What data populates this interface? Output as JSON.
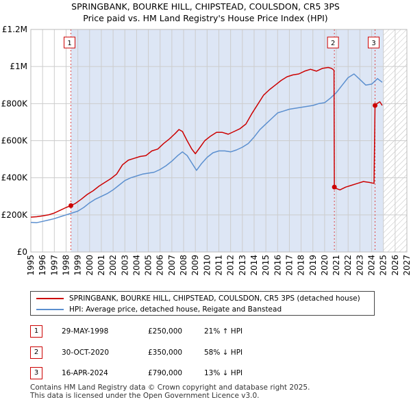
{
  "header": {
    "title_line1": "SPRINGBANK, BOURKE HILL, CHIPSTEAD, COULSDON, CR5 3PS",
    "title_line2": "Price paid vs. HM Land Registry's House Price Index (HPI)"
  },
  "colors": {
    "property": "#cc0000",
    "hpi": "#5b8fcf",
    "shade": "#dde6f5",
    "grid": "#cccccc",
    "marker_line": "#dd4444"
  },
  "chart_data": {
    "type": "line",
    "xlim": [
      1995,
      2027
    ],
    "ylim": [
      0,
      1200000
    ],
    "y_ticks": [
      {
        "value": 0,
        "label": "£0"
      },
      {
        "value": 200000,
        "label": "£200K"
      },
      {
        "value": 400000,
        "label": "£400K"
      },
      {
        "value": 600000,
        "label": "£600K"
      },
      {
        "value": 800000,
        "label": "£800K"
      },
      {
        "value": 1000000,
        "label": "£1M"
      },
      {
        "value": 1200000,
        "label": "£1.2M"
      }
    ],
    "x_ticks": [
      "1995",
      "1996",
      "1997",
      "1998",
      "1999",
      "2000",
      "2001",
      "2002",
      "2003",
      "2004",
      "2005",
      "2006",
      "2007",
      "2008",
      "2009",
      "2010",
      "2011",
      "2012",
      "2013",
      "2014",
      "2015",
      "2016",
      "2017",
      "2018",
      "2019",
      "2020",
      "2021",
      "2022",
      "2023",
      "2024",
      "2025",
      "2026",
      "2027"
    ],
    "shaded_region": [
      1998.41,
      2025.0
    ],
    "hatched_from": 2025.0,
    "series": [
      {
        "name": "SPRINGBANK, BOURKE HILL, CHIPSTEAD, COULSDON, CR5 3PS (detached house)",
        "color": "#cc0000",
        "x": [
          1995.0,
          1995.5,
          1996.0,
          1996.5,
          1997.0,
          1997.5,
          1998.0,
          1998.41,
          1998.8,
          1999.3,
          1999.8,
          2000.3,
          2000.8,
          2001.3,
          2001.8,
          2002.3,
          2002.8,
          2003.3,
          2003.8,
          2004.3,
          2004.8,
          2005.3,
          2005.8,
          2006.3,
          2006.8,
          2007.3,
          2007.6,
          2007.9,
          2008.3,
          2008.7,
          2009.0,
          2009.4,
          2009.8,
          2010.3,
          2010.8,
          2011.3,
          2011.8,
          2012.3,
          2012.8,
          2013.3,
          2013.8,
          2014.3,
          2014.8,
          2015.3,
          2015.8,
          2016.3,
          2016.8,
          2017.3,
          2017.8,
          2018.3,
          2018.8,
          2019.3,
          2019.8,
          2020.3,
          2020.6,
          2020.8,
          2020.83,
          2020.9,
          2021.3,
          2021.8,
          2022.3,
          2022.8,
          2023.3,
          2023.8,
          2024.2,
          2024.29,
          2024.45,
          2024.7,
          2024.9
        ],
        "values": [
          188000,
          190000,
          195000,
          200000,
          210000,
          225000,
          240000,
          250000,
          262000,
          285000,
          310000,
          330000,
          355000,
          375000,
          395000,
          420000,
          470000,
          495000,
          505000,
          515000,
          520000,
          545000,
          555000,
          585000,
          610000,
          640000,
          660000,
          650000,
          600000,
          555000,
          530000,
          565000,
          600000,
          625000,
          645000,
          645000,
          635000,
          650000,
          665000,
          690000,
          745000,
          795000,
          845000,
          875000,
          900000,
          925000,
          945000,
          955000,
          960000,
          975000,
          985000,
          975000,
          990000,
          995000,
          990000,
          980000,
          350000,
          345000,
          335000,
          350000,
          360000,
          370000,
          380000,
          375000,
          370000,
          790000,
          800000,
          810000,
          790000
        ]
      },
      {
        "name": "HPI: Average price, detached house, Reigate and Banstead",
        "color": "#5b8fcf",
        "x": [
          1995.0,
          1995.5,
          1996.0,
          1996.5,
          1997.0,
          1997.5,
          1998.0,
          1998.5,
          1999.0,
          1999.5,
          2000.0,
          2000.5,
          2001.0,
          2001.5,
          2002.0,
          2002.5,
          2003.0,
          2003.5,
          2004.0,
          2004.5,
          2005.0,
          2005.5,
          2006.0,
          2006.5,
          2007.0,
          2007.5,
          2007.9,
          2008.3,
          2008.7,
          2009.1,
          2009.5,
          2010.0,
          2010.5,
          2011.0,
          2011.5,
          2012.0,
          2012.5,
          2013.0,
          2013.5,
          2014.0,
          2014.5,
          2015.0,
          2015.5,
          2016.0,
          2016.5,
          2017.0,
          2017.5,
          2018.0,
          2018.5,
          2019.0,
          2019.5,
          2020.0,
          2020.5,
          2021.0,
          2021.5,
          2022.0,
          2022.5,
          2023.0,
          2023.5,
          2024.0,
          2024.5,
          2024.9
        ],
        "values": [
          160000,
          158000,
          165000,
          172000,
          180000,
          190000,
          200000,
          210000,
          220000,
          240000,
          265000,
          285000,
          300000,
          315000,
          335000,
          360000,
          385000,
          400000,
          410000,
          420000,
          425000,
          430000,
          445000,
          465000,
          490000,
          520000,
          540000,
          520000,
          480000,
          440000,
          475000,
          510000,
          535000,
          545000,
          545000,
          540000,
          550000,
          565000,
          585000,
          620000,
          660000,
          690000,
          720000,
          750000,
          760000,
          770000,
          775000,
          780000,
          785000,
          790000,
          800000,
          805000,
          830000,
          860000,
          900000,
          940000,
          960000,
          930000,
          900000,
          905000,
          935000,
          915000
        ]
      }
    ],
    "sales": [
      {
        "num": "1",
        "x": 1998.41,
        "value": 250000,
        "label_value": 1100000
      },
      {
        "num": "2",
        "x": 2020.83,
        "value": 350000,
        "label_value": 1100000
      },
      {
        "num": "3",
        "x": 2024.29,
        "value": 790000,
        "label_value": 1100000
      }
    ]
  },
  "legend": {
    "property_label": "SPRINGBANK, BOURKE HILL, CHIPSTEAD, COULSDON, CR5 3PS (detached house)",
    "hpi_label": "HPI: Average price, detached house, Reigate and Banstead"
  },
  "sales_table": [
    {
      "num": "1",
      "date": "29-MAY-1998",
      "price": "£250,000",
      "hpi": "21% ↑ HPI"
    },
    {
      "num": "2",
      "date": "30-OCT-2020",
      "price": "£350,000",
      "hpi": "58% ↓ HPI"
    },
    {
      "num": "3",
      "date": "16-APR-2024",
      "price": "£790,000",
      "hpi": "13% ↓ HPI"
    }
  ],
  "footer": {
    "line1": "Contains HM Land Registry data © Crown copyright and database right 2025.",
    "line2": "This data is licensed under the Open Government Licence v3.0."
  }
}
